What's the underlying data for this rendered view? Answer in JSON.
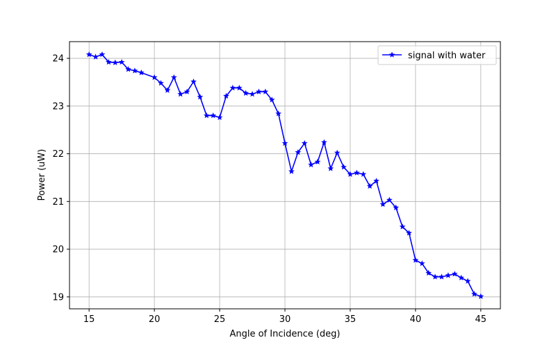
{
  "chart_data": {
    "type": "line",
    "title": "",
    "xlabel": "Angle of Incidence (deg)",
    "ylabel": "Power (uW)",
    "xlim": [
      13.5,
      46.5
    ],
    "ylim": [
      18.75,
      24.35
    ],
    "xticks": [
      15,
      20,
      25,
      30,
      35,
      40,
      45
    ],
    "yticks": [
      19,
      20,
      21,
      22,
      23,
      24
    ],
    "grid": true,
    "legend_position": "top-right",
    "series": [
      {
        "name": "signal with water",
        "color": "#0000ff",
        "marker": "star",
        "x": [
          15,
          15.5,
          16,
          16.5,
          17,
          17.5,
          18,
          18.5,
          19,
          20,
          20.5,
          21,
          21.5,
          22,
          22.5,
          23,
          23.5,
          24,
          24.5,
          25,
          25.5,
          26,
          26.5,
          27,
          27.5,
          28,
          28.5,
          29,
          29.5,
          30,
          30.5,
          31,
          31.5,
          32,
          32.5,
          33,
          33.5,
          34,
          34.5,
          35,
          35.5,
          36,
          36.5,
          37,
          37.5,
          38,
          38.5,
          39,
          39.5,
          40,
          40.5,
          41,
          41.5,
          42,
          42.5,
          43,
          43.5,
          44,
          44.5,
          45
        ],
        "y": [
          24.08,
          24.03,
          24.08,
          23.92,
          23.91,
          23.92,
          23.77,
          23.74,
          23.7,
          23.6,
          23.48,
          23.33,
          23.6,
          23.25,
          23.3,
          23.51,
          23.19,
          22.8,
          22.8,
          22.76,
          23.21,
          23.38,
          23.38,
          23.27,
          23.25,
          23.3,
          23.3,
          23.13,
          22.84,
          22.22,
          21.63,
          22.03,
          22.22,
          21.77,
          21.83,
          22.24,
          21.69,
          22.02,
          21.72,
          21.57,
          21.6,
          21.57,
          21.32,
          21.43,
          20.94,
          21.03,
          20.87,
          20.47,
          20.34,
          19.77,
          19.7,
          19.5,
          19.42,
          19.42,
          19.45,
          19.48,
          19.4,
          19.33,
          19.06,
          19.01
        ]
      }
    ]
  }
}
